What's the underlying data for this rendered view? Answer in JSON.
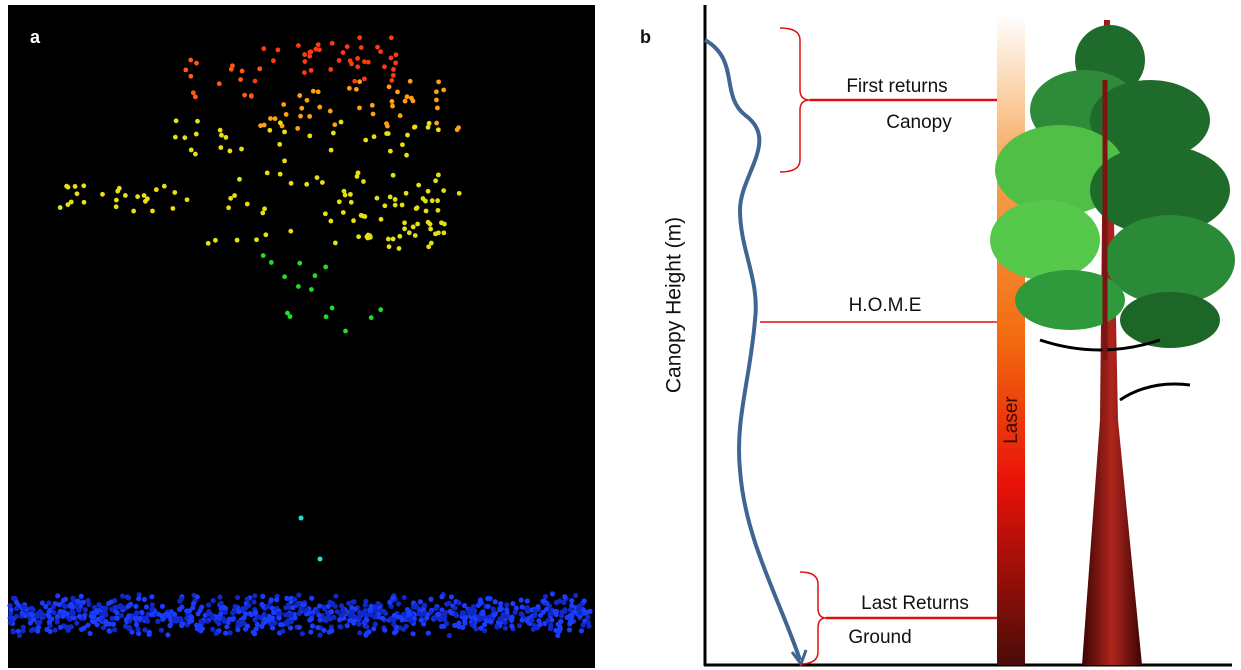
{
  "panel_a": {
    "label": "a"
  },
  "panel_b": {
    "label": "b",
    "y_axis_label": "Canopy Height (m)",
    "laser_label": "Laser",
    "annotations": {
      "first_returns": "First returns",
      "canopy": "Canopy",
      "home": "H.O.M.E",
      "last_returns": "Last Returns",
      "ground": "Ground"
    }
  }
}
